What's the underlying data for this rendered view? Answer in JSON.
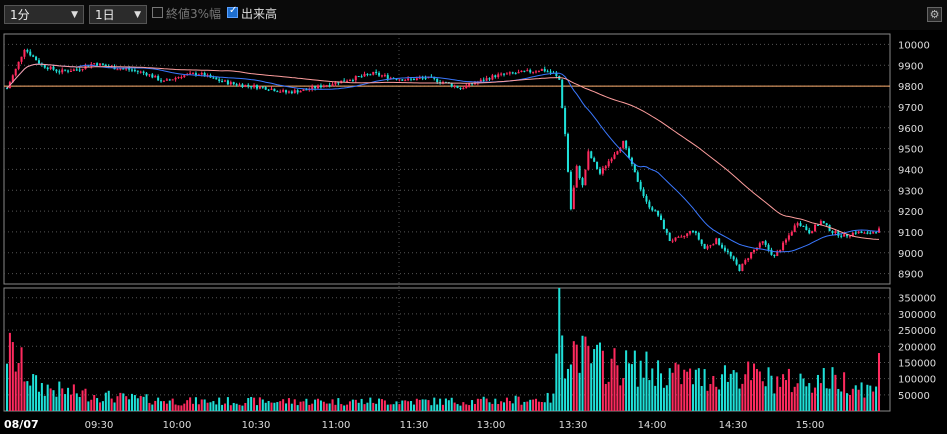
{
  "toolbar": {
    "interval_select": "1分",
    "range_select": "1日",
    "option_close3": "終値3%幅",
    "option_close3_checked": false,
    "option_volume": "出来高",
    "option_volume_checked": true,
    "settings_icon": "gear-icon"
  },
  "colors": {
    "background": "#000000",
    "up": "#ff2a5e",
    "down": "#1fe0d8",
    "ma_short": "#3a78ff",
    "ma_long": "#ff9e9e",
    "ref_line": "#ffb070",
    "grid": "#555555",
    "frame": "#888888"
  },
  "chart_data": [
    {
      "type": "candlestick",
      "date_label": "08/07",
      "x_tick_labels": [
        "09:30",
        "10:00",
        "10:30",
        "11:00",
        "11:30",
        "13:00",
        "13:30",
        "14:00",
        "14:30",
        "15:00"
      ],
      "y_tick_labels": [
        "10000",
        "9900",
        "9800",
        "9700",
        "9600",
        "9500",
        "9400",
        "9300",
        "9200",
        "9100",
        "9000",
        "8900"
      ],
      "ylim": [
        8850,
        10050
      ],
      "reference_price": 9800,
      "grid": true,
      "price_path": [
        [
          0,
          9790
        ],
        [
          3,
          9880
        ],
        [
          6,
          9980
        ],
        [
          9,
          9940
        ],
        [
          12,
          9900
        ],
        [
          18,
          9870
        ],
        [
          24,
          9880
        ],
        [
          30,
          9910
        ],
        [
          36,
          9890
        ],
        [
          42,
          9880
        ],
        [
          48,
          9860
        ],
        [
          54,
          9820
        ],
        [
          60,
          9850
        ],
        [
          66,
          9860
        ],
        [
          72,
          9830
        ],
        [
          78,
          9810
        ],
        [
          84,
          9800
        ],
        [
          90,
          9790
        ],
        [
          96,
          9770
        ],
        [
          102,
          9780
        ],
        [
          108,
          9800
        ],
        [
          114,
          9820
        ],
        [
          120,
          9840
        ],
        [
          126,
          9860
        ],
        [
          132,
          9840
        ],
        [
          138,
          9830
        ],
        [
          144,
          9840
        ],
        [
          150,
          9820
        ],
        [
          156,
          9790
        ],
        [
          162,
          9820
        ],
        [
          168,
          9850
        ],
        [
          174,
          9860
        ],
        [
          180,
          9870
        ],
        [
          184,
          9880
        ],
        [
          188,
          9860
        ],
        [
          190,
          9830
        ],
        [
          192,
          9570
        ],
        [
          194,
          9210
        ],
        [
          196,
          9410
        ],
        [
          198,
          9320
        ],
        [
          200,
          9480
        ],
        [
          204,
          9380
        ],
        [
          208,
          9460
        ],
        [
          212,
          9530
        ],
        [
          216,
          9380
        ],
        [
          220,
          9240
        ],
        [
          224,
          9180
        ],
        [
          228,
          9060
        ],
        [
          232,
          9070
        ],
        [
          236,
          9110
        ],
        [
          240,
          9020
        ],
        [
          244,
          9060
        ],
        [
          248,
          9000
        ],
        [
          252,
          8920
        ],
        [
          256,
          9000
        ],
        [
          260,
          9050
        ],
        [
          264,
          8980
        ],
        [
          268,
          9060
        ],
        [
          272,
          9150
        ],
        [
          276,
          9100
        ],
        [
          280,
          9150
        ],
        [
          284,
          9100
        ],
        [
          288,
          9080
        ],
        [
          292,
          9100
        ],
        [
          296,
          9090
        ],
        [
          300,
          9110
        ]
      ]
    },
    {
      "type": "bar",
      "series_name": "出来高",
      "y_tick_labels": [
        "350000",
        "300000",
        "250000",
        "200000",
        "150000",
        "100000",
        "50000"
      ],
      "ylim": [
        0,
        380000
      ],
      "volume_path": [
        [
          0,
          190000
        ],
        [
          4,
          150000
        ],
        [
          10,
          80000
        ],
        [
          20,
          60000
        ],
        [
          40,
          40000
        ],
        [
          60,
          30000
        ],
        [
          80,
          30000
        ],
        [
          100,
          30000
        ],
        [
          120,
          30000
        ],
        [
          140,
          30000
        ],
        [
          160,
          30000
        ],
        [
          180,
          35000
        ],
        [
          188,
          40000
        ],
        [
          190,
          370000
        ],
        [
          192,
          180000
        ],
        [
          194,
          200000
        ],
        [
          200,
          160000
        ],
        [
          210,
          140000
        ],
        [
          220,
          130000
        ],
        [
          230,
          110000
        ],
        [
          240,
          100000
        ],
        [
          250,
          120000
        ],
        [
          260,
          100000
        ],
        [
          270,
          90000
        ],
        [
          280,
          100000
        ],
        [
          290,
          90000
        ],
        [
          299,
          60000
        ],
        [
          300,
          315000
        ]
      ]
    }
  ]
}
